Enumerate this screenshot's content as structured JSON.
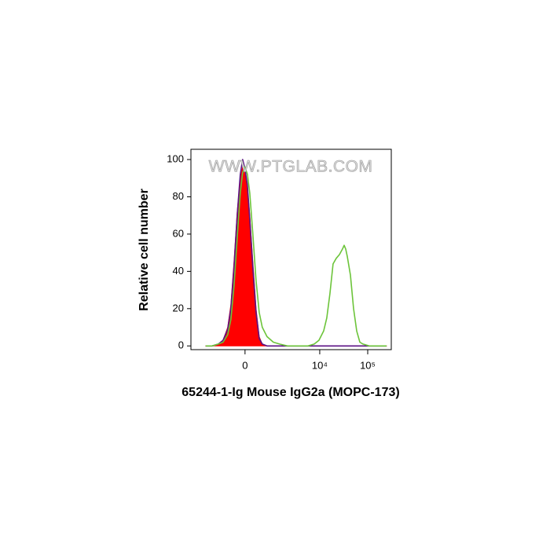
{
  "chart_data": {
    "type": "histogram-overlay",
    "title": "65244-1-Ig Mouse IgG2a (MOPC-173)",
    "y_label": "Relative cell number",
    "watermark": "WWW.PTGLAB.COM",
    "xscale": "arcsinh",
    "xlim": [
      -3700,
      310000
    ],
    "xticks": [
      0,
      {
        "value": 10000,
        "label": "10⁴"
      },
      {
        "value": 100000,
        "label": "10⁵"
      }
    ],
    "ylim": [
      -2,
      105.5
    ],
    "yticks": [
      0,
      20,
      40,
      60,
      80,
      100
    ],
    "x": [
      -1787,
      -1293,
      -922,
      -699,
      -515,
      -407,
      -307,
      -214,
      -127,
      -63,
      0,
      63,
      127,
      214,
      307,
      407,
      515,
      699,
      1010,
      1404,
      2092,
      3330,
      5667,
      7676,
      9618,
      12071,
      14040,
      16317,
      18981,
      22089,
      25697,
      29859,
      32246,
      34743,
      37463,
      43568,
      50727,
      58941,
      68543,
      79698,
      107781,
      157287,
      246975
    ],
    "series": [
      {
        "color": "#ff0000",
        "fill": true,
        "values": [
          0,
          0,
          1,
          3,
          10,
          22,
          45,
          72,
          90,
          96,
          92,
          85,
          70,
          45,
          20,
          5,
          1,
          0,
          0,
          0,
          0,
          0,
          0,
          0,
          0,
          0,
          0,
          0,
          0,
          0,
          0,
          0,
          0,
          0,
          0,
          0,
          0,
          0,
          0,
          0,
          0,
          0,
          0
        ]
      },
      {
        "color": "#5b1285",
        "fill": false,
        "values": [
          0,
          0,
          1,
          3,
          9,
          20,
          42,
          70,
          92,
          100,
          95,
          86,
          68,
          42,
          18,
          4,
          1,
          0,
          0,
          0,
          0,
          0,
          0,
          0,
          0,
          0,
          0,
          0,
          0,
          0,
          0,
          0,
          0,
          0,
          0,
          0,
          0,
          0,
          0,
          0,
          0,
          0,
          0
        ]
      },
      {
        "color": "#6cc43a",
        "fill": false,
        "values": [
          0,
          0,
          1,
          2,
          6,
          14,
          32,
          58,
          82,
          93,
          96,
          92,
          82,
          60,
          35,
          18,
          10,
          5,
          2,
          1,
          0,
          0,
          0,
          1,
          3,
          8,
          15,
          28,
          44,
          47,
          49,
          52,
          54,
          52,
          48,
          38,
          20,
          8,
          2,
          1,
          0,
          0,
          0
        ]
      }
    ]
  }
}
